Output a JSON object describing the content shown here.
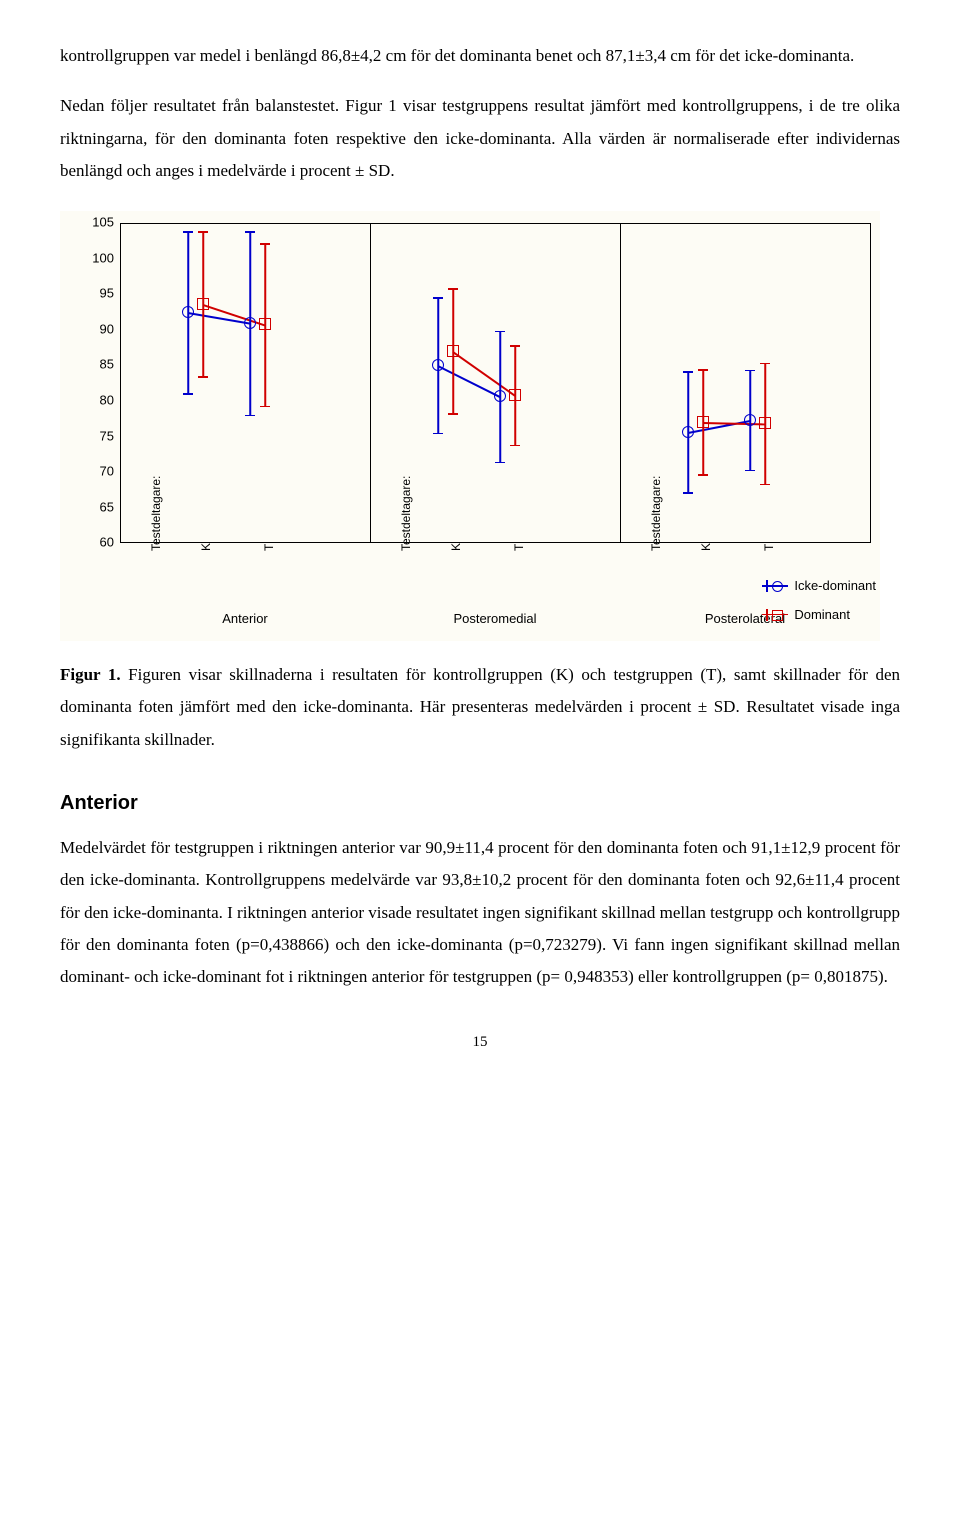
{
  "text": {
    "p1": "kontrollgruppen var medel i benlängd 86,8±4,2 cm för det dominanta benet och 87,1±3,4 cm för det icke-dominanta.",
    "p2": "Nedan följer resultatet från balanstestet. Figur 1 visar testgruppens resultat jämfört med kontrollgruppens, i de tre olika riktningarna, för den dominanta foten respektive den icke-dominanta. Alla värden är normaliserade efter individernas benlängd och anges i medelvärde i procent ± SD.",
    "fig_caption_bold": "Figur 1.",
    "fig_caption": " Figuren visar skillnaderna i resultaten för kontrollgruppen (K) och testgruppen (T), samt skillnader för den dominanta foten jämfört med den icke-dominanta. Här presenteras medelvärden i procent ± SD. Resultatet visade inga signifikanta skillnader.",
    "section_heading": "Anterior",
    "p3": "Medelvärdet för testgruppen i riktningen anterior var 90,9±11,4 procent för den dominanta foten och 91,1±12,9 procent för den icke-dominanta. Kontrollgruppens medelvärde var 93,8±10,2 procent för den dominanta foten och 92,6±11,4 procent för den icke-dominanta. I riktningen anterior visade resultatet ingen signifikant skillnad mellan testgrupp och kontrollgrupp för den dominanta foten (p=0,438866) och den icke-dominanta (p=0,723279). Vi fann ingen signifikant skillnad mellan dominant- och icke-dominant fot i riktningen anterior för testgruppen (p= 0,948353) eller kontrollgruppen (p= 0,801875).",
    "page_number": "15"
  },
  "chart": {
    "ylim": [
      60,
      105
    ],
    "yticks": [
      60,
      65,
      70,
      75,
      80,
      85,
      90,
      95,
      100,
      105
    ],
    "panel_labels": [
      "Anterior",
      "Posteromedial",
      "Posterolateral"
    ],
    "x_labels_rotated": [
      "Testdeltagare:",
      "K",
      "T"
    ],
    "legend": [
      {
        "label": "Icke-dominant",
        "color": "#0000cc",
        "marker": "circle"
      },
      {
        "label": "Dominant",
        "color": "#d00000",
        "marker": "square"
      }
    ],
    "colors": {
      "icke": "#0000cc",
      "dom": "#d00000",
      "bg": "#fdfcf5",
      "border": "#000000"
    },
    "panels": [
      {
        "name": "Anterior",
        "K": {
          "icke_mean": 92.6,
          "icke_sd": 11.4,
          "dom_mean": 93.8,
          "dom_sd": 10.2
        },
        "T": {
          "icke_mean": 91.1,
          "icke_sd": 12.9,
          "dom_mean": 90.9,
          "dom_sd": 11.4
        }
      },
      {
        "name": "Posteromedial",
        "K": {
          "icke_mean": 85.2,
          "icke_sd": 9.5,
          "dom_mean": 87.2,
          "dom_sd": 8.8
        },
        "T": {
          "icke_mean": 80.8,
          "icke_sd": 9.2,
          "dom_mean": 81.0,
          "dom_sd": 7.0
        }
      },
      {
        "name": "Posterolateral",
        "K": {
          "icke_mean": 75.8,
          "icke_sd": 8.5,
          "dom_mean": 77.2,
          "dom_sd": 7.4
        },
        "T": {
          "icke_mean": 77.5,
          "icke_sd": 7.0,
          "dom_mean": 77.0,
          "dom_sd": 8.5
        }
      }
    ]
  }
}
